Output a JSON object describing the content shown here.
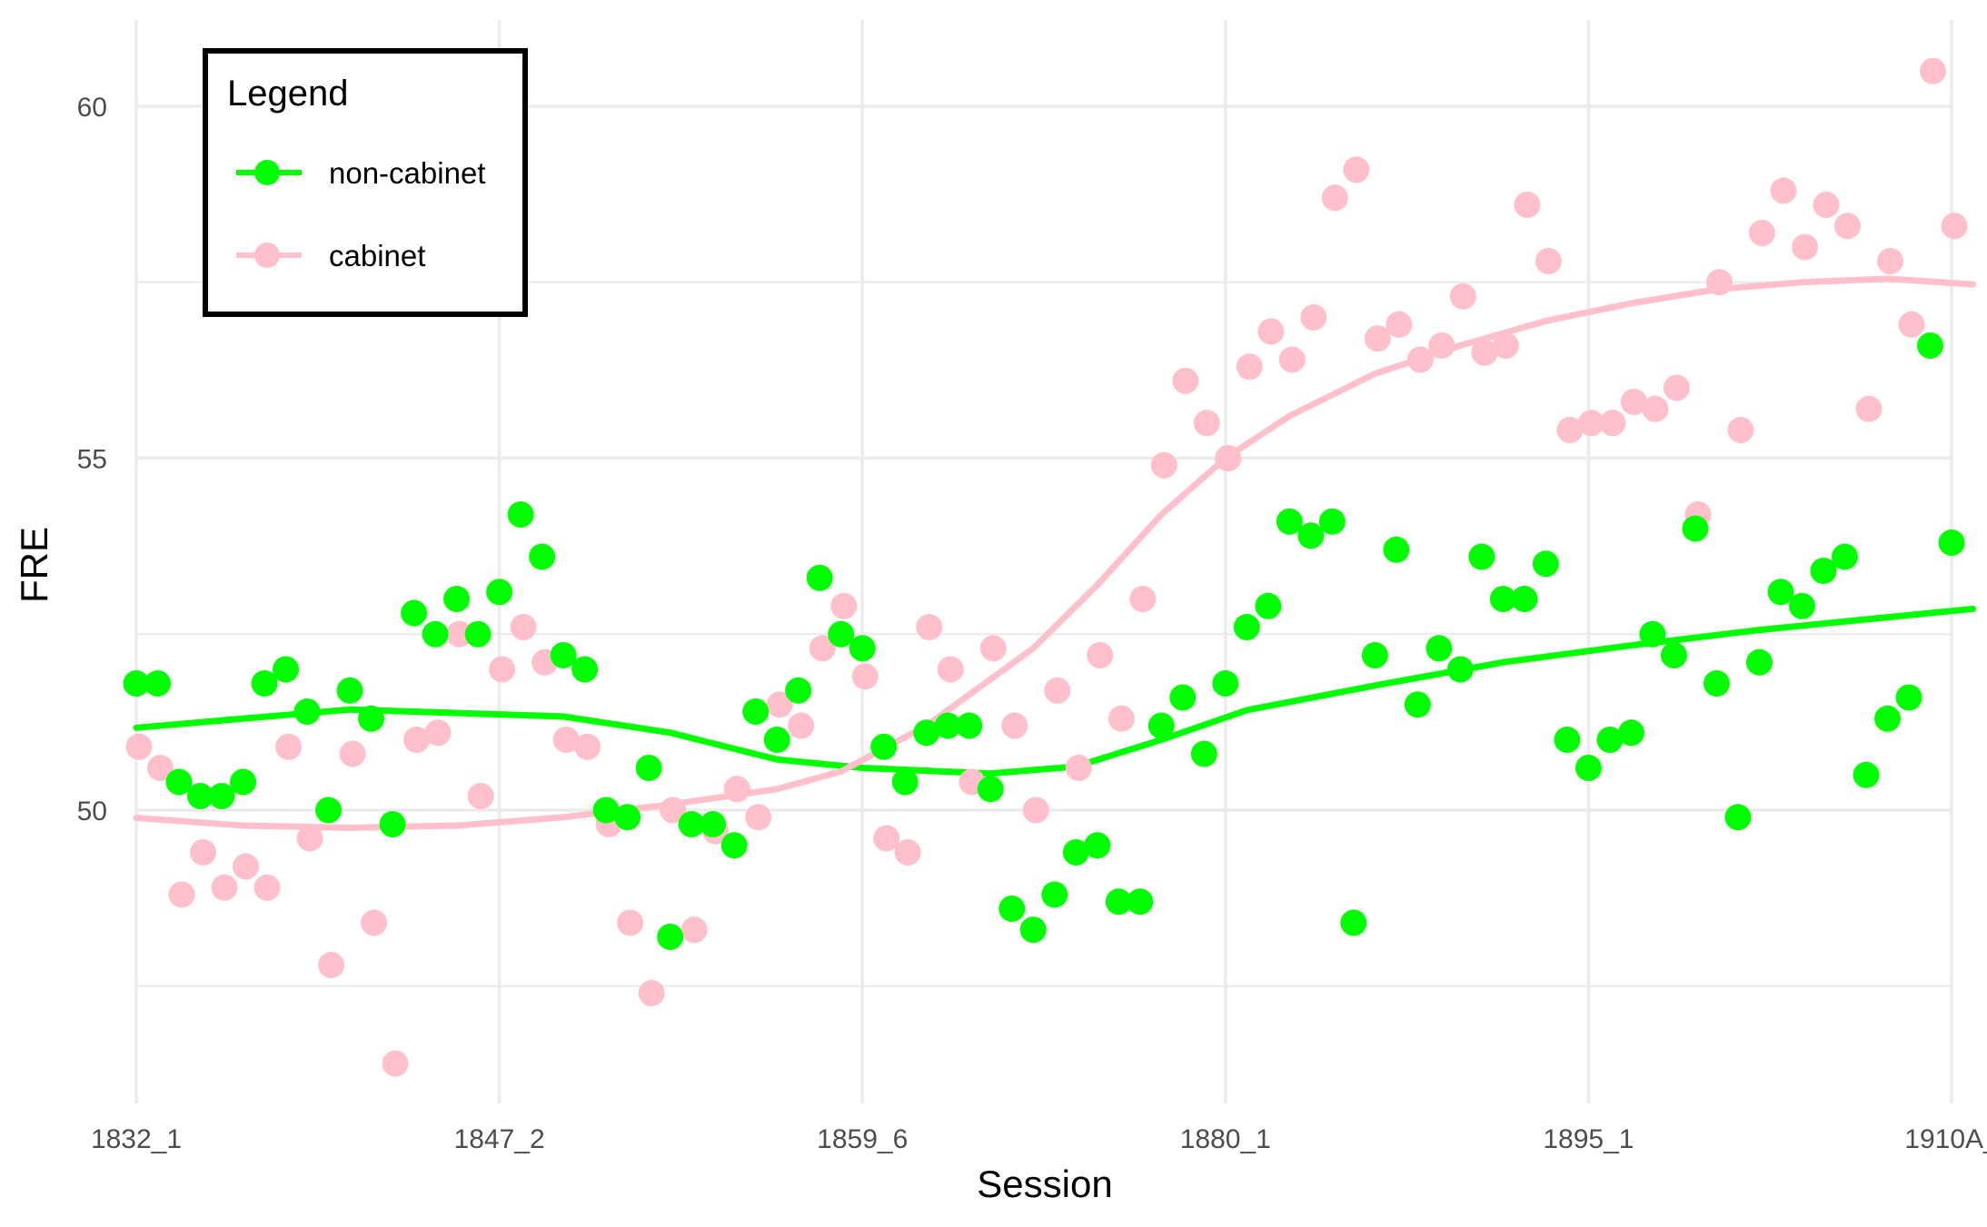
{
  "chart_data": {
    "type": "scatter",
    "xlabel": "Session",
    "ylabel": "FRE",
    "x_ticks": [
      "1832_1",
      "1847_2",
      "1859_6",
      "1880_1",
      "1895_1",
      "1910A_"
    ],
    "y_ticks": [
      50,
      55,
      60
    ],
    "ylim": [
      45.8,
      61.3
    ],
    "grid": true,
    "legend": {
      "title": "Legend",
      "placement": "top-left",
      "entries": [
        "non-cabinet",
        "cabinet"
      ]
    },
    "x_positions_note": "",
    "series": [
      {
        "name": "non-cabinet",
        "color": "#00ff00",
        "points": [
          [
            0,
            51.8
          ],
          [
            1,
            51.8
          ],
          [
            2,
            50.4
          ],
          [
            3,
            50.2
          ],
          [
            4,
            50.2
          ],
          [
            5,
            50.4
          ],
          [
            6,
            51.8
          ],
          [
            7,
            52.0
          ],
          [
            8,
            51.4
          ],
          [
            9,
            50.0
          ],
          [
            10,
            51.7
          ],
          [
            11,
            51.3
          ],
          [
            12,
            49.8
          ],
          [
            13,
            52.8
          ],
          [
            14,
            52.5
          ],
          [
            15,
            53.0
          ],
          [
            16,
            52.5
          ],
          [
            17,
            53.1
          ],
          [
            18,
            54.2
          ],
          [
            19,
            53.6
          ],
          [
            20,
            52.2
          ],
          [
            21,
            52.0
          ],
          [
            22,
            50.0
          ],
          [
            23,
            49.9
          ],
          [
            24,
            50.6
          ],
          [
            25,
            48.2
          ],
          [
            26,
            49.8
          ],
          [
            27,
            49.8
          ],
          [
            28,
            49.5
          ],
          [
            29,
            51.4
          ],
          [
            30,
            51.0
          ],
          [
            31,
            51.7
          ],
          [
            32,
            53.3
          ],
          [
            33,
            52.5
          ],
          [
            34,
            52.3
          ],
          [
            35,
            50.9
          ],
          [
            36,
            50.4
          ],
          [
            37,
            51.1
          ],
          [
            38,
            51.2
          ],
          [
            39,
            51.2
          ],
          [
            40,
            50.3
          ],
          [
            41,
            48.6
          ],
          [
            42,
            48.3
          ],
          [
            43,
            48.8
          ],
          [
            44,
            49.4
          ],
          [
            45,
            49.5
          ],
          [
            46,
            48.7
          ],
          [
            47,
            48.7
          ],
          [
            48,
            51.2
          ],
          [
            49,
            51.6
          ],
          [
            50,
            50.8
          ],
          [
            51,
            51.8
          ],
          [
            52,
            52.6
          ],
          [
            53,
            52.9
          ],
          [
            54,
            54.1
          ],
          [
            55,
            53.9
          ],
          [
            56,
            54.1
          ],
          [
            57,
            48.4
          ],
          [
            58,
            52.2
          ],
          [
            59,
            53.7
          ],
          [
            60,
            51.5
          ],
          [
            61,
            52.3
          ],
          [
            62,
            52.0
          ],
          [
            63,
            53.6
          ],
          [
            64,
            53.0
          ],
          [
            65,
            53.0
          ],
          [
            66,
            53.5
          ],
          [
            67,
            51.0
          ],
          [
            68,
            50.6
          ],
          [
            69,
            51.0
          ],
          [
            70,
            51.1
          ],
          [
            71,
            52.5
          ],
          [
            72,
            52.2
          ],
          [
            73,
            54.0
          ],
          [
            74,
            51.8
          ],
          [
            75,
            49.9
          ],
          [
            76,
            52.1
          ],
          [
            77,
            53.1
          ],
          [
            78,
            52.9
          ],
          [
            79,
            53.4
          ],
          [
            80,
            53.6
          ],
          [
            81,
            50.5
          ],
          [
            82,
            51.3
          ],
          [
            83,
            51.6
          ],
          [
            84,
            56.6
          ],
          [
            85,
            53.8
          ]
        ],
        "smooth": [
          [
            0,
            51.17
          ],
          [
            10,
            51.43
          ],
          [
            20,
            51.33
          ],
          [
            25,
            51.1
          ],
          [
            30,
            50.72
          ],
          [
            34,
            50.6
          ],
          [
            40,
            50.52
          ],
          [
            44,
            50.62
          ],
          [
            48,
            51.0
          ],
          [
            52,
            51.42
          ],
          [
            58,
            51.77
          ],
          [
            64,
            52.1
          ],
          [
            70,
            52.34
          ],
          [
            76,
            52.56
          ],
          [
            82,
            52.74
          ],
          [
            86,
            52.86
          ]
        ]
      },
      {
        "name": "cabinet",
        "color": "#ffc0cb",
        "points": [
          [
            0,
            50.9
          ],
          [
            1,
            50.6
          ],
          [
            2,
            48.8
          ],
          [
            3,
            49.4
          ],
          [
            4,
            48.9
          ],
          [
            5,
            49.2
          ],
          [
            6,
            48.9
          ],
          [
            7,
            50.9
          ],
          [
            8,
            49.6
          ],
          [
            9,
            47.8
          ],
          [
            10,
            50.8
          ],
          [
            11,
            48.4
          ],
          [
            12,
            46.4
          ],
          [
            13,
            51.0
          ],
          [
            14,
            51.1
          ],
          [
            15,
            52.5
          ],
          [
            16,
            50.2
          ],
          [
            17,
            52.0
          ],
          [
            18,
            52.6
          ],
          [
            19,
            52.1
          ],
          [
            20,
            51.0
          ],
          [
            21,
            50.9
          ],
          [
            22,
            49.8
          ],
          [
            23,
            48.4
          ],
          [
            24,
            47.4
          ],
          [
            25,
            50.0
          ],
          [
            26,
            48.3
          ],
          [
            27,
            49.7
          ],
          [
            28,
            50.3
          ],
          [
            29,
            49.9
          ],
          [
            30,
            51.5
          ],
          [
            31,
            51.2
          ],
          [
            32,
            52.3
          ],
          [
            33,
            52.9
          ],
          [
            34,
            51.9
          ],
          [
            35,
            49.6
          ],
          [
            36,
            49.4
          ],
          [
            37,
            52.6
          ],
          [
            38,
            52.0
          ],
          [
            39,
            50.4
          ],
          [
            40,
            52.3
          ],
          [
            41,
            51.2
          ],
          [
            42,
            50.0
          ],
          [
            43,
            51.7
          ],
          [
            44,
            50.6
          ],
          [
            45,
            52.2
          ],
          [
            46,
            51.3
          ],
          [
            47,
            53.0
          ],
          [
            48,
            54.9
          ],
          [
            49,
            56.1
          ],
          [
            50,
            55.5
          ],
          [
            51,
            55.0
          ],
          [
            52,
            56.3
          ],
          [
            53,
            56.8
          ],
          [
            54,
            56.4
          ],
          [
            55,
            57.0
          ],
          [
            56,
            58.7
          ],
          [
            57,
            59.1
          ],
          [
            58,
            56.7
          ],
          [
            59,
            56.9
          ],
          [
            60,
            56.4
          ],
          [
            61,
            56.6
          ],
          [
            62,
            57.3
          ],
          [
            63,
            56.5
          ],
          [
            64,
            56.6
          ],
          [
            65,
            58.6
          ],
          [
            66,
            57.8
          ],
          [
            67,
            55.4
          ],
          [
            68,
            55.5
          ],
          [
            69,
            55.5
          ],
          [
            70,
            55.8
          ],
          [
            71,
            55.7
          ],
          [
            72,
            56.0
          ],
          [
            73,
            54.2
          ],
          [
            74,
            57.5
          ],
          [
            75,
            55.4
          ],
          [
            76,
            58.2
          ],
          [
            77,
            58.8
          ],
          [
            78,
            58.0
          ],
          [
            79,
            58.6
          ],
          [
            80,
            58.3
          ],
          [
            81,
            55.7
          ],
          [
            82,
            57.8
          ],
          [
            83,
            56.9
          ],
          [
            84,
            60.5
          ],
          [
            85,
            58.3
          ]
        ],
        "smooth": [
          [
            0,
            49.89
          ],
          [
            5,
            49.78
          ],
          [
            10,
            49.75
          ],
          [
            15,
            49.78
          ],
          [
            20,
            49.9
          ],
          [
            25,
            50.08
          ],
          [
            30,
            50.3
          ],
          [
            33,
            50.55
          ],
          [
            37,
            51.2
          ],
          [
            42,
            52.3
          ],
          [
            45,
            53.2
          ],
          [
            48,
            54.2
          ],
          [
            51,
            55.0
          ],
          [
            54,
            55.6
          ],
          [
            58,
            56.2
          ],
          [
            62,
            56.6
          ],
          [
            66,
            56.95
          ],
          [
            70,
            57.2
          ],
          [
            74,
            57.4
          ],
          [
            78,
            57.5
          ],
          [
            82,
            57.55
          ],
          [
            86,
            57.47
          ]
        ]
      }
    ]
  }
}
